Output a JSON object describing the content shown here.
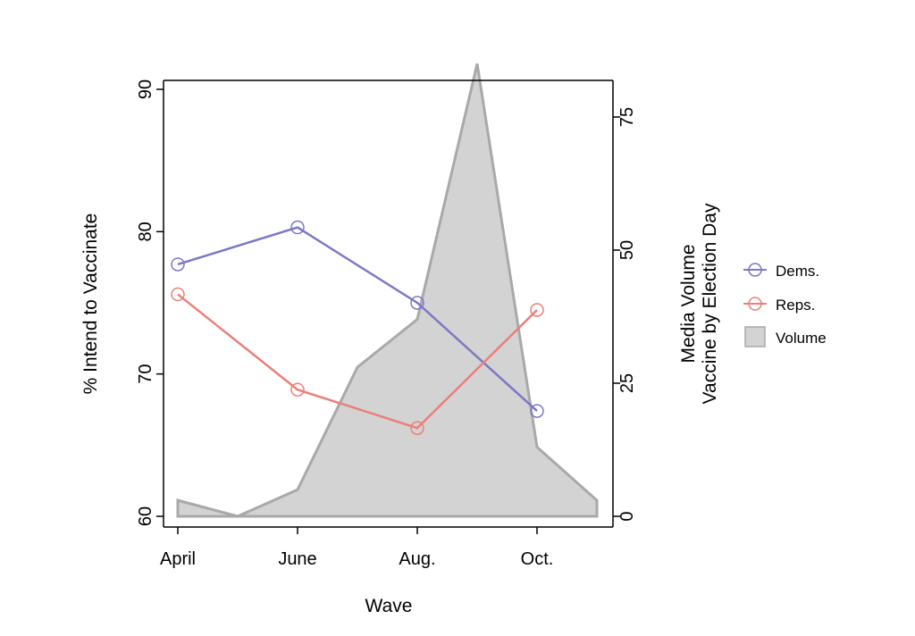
{
  "chart_data": {
    "type": "line",
    "xlabel": "Wave",
    "ylabel": "% Intend to Vaccinate",
    "y2label_line1": "Media Volume",
    "y2label_line2": "Vaccine by Election Day",
    "categories": [
      "April",
      "June",
      "Aug.",
      "Oct."
    ],
    "y_ticks": [
      60,
      70,
      80,
      90
    ],
    "y2_ticks": [
      0,
      25,
      50,
      75
    ],
    "ylim": [
      60,
      90
    ],
    "y2lim": [
      0,
      85
    ],
    "series": [
      {
        "name": "Dems.",
        "color": "#7b78c6",
        "x": [
          "April",
          "June",
          "Aug.",
          "Oct."
        ],
        "values": [
          77.7,
          80.3,
          75.0,
          67.4
        ]
      },
      {
        "name": "Reps.",
        "color": "#ec7f78",
        "x": [
          "April",
          "June",
          "Aug.",
          "Oct."
        ],
        "values": [
          75.6,
          68.9,
          66.2,
          74.5
        ]
      }
    ],
    "area": {
      "name": "Volume",
      "color": "#d3d3d3",
      "edge_color": "#a9a9a9",
      "x": [
        0,
        0.5,
        1,
        1.5,
        2,
        2.5,
        3,
        3.5
      ],
      "values": [
        3,
        0,
        5,
        28,
        37,
        85,
        13,
        3
      ]
    },
    "legend": {
      "position": "right",
      "entries": [
        "Dems.",
        "Reps.",
        "Volume"
      ]
    },
    "grid": false
  }
}
